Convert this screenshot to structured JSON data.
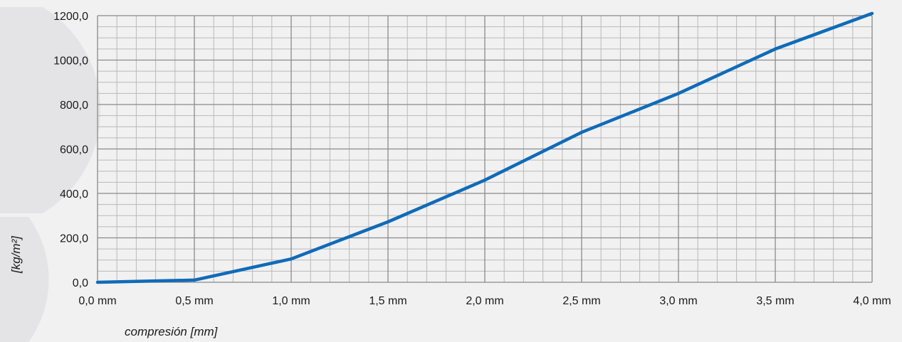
{
  "chart_data": {
    "type": "line",
    "title": "",
    "xlabel": "compresión [mm]",
    "ylabel": "[kg/m²]",
    "x": [
      0.0,
      0.5,
      1.0,
      1.5,
      2.0,
      2.5,
      3.0,
      3.5,
      4.0
    ],
    "series": [
      {
        "values": [
          0,
          10,
          105,
          272,
          460,
          675,
          850,
          1050,
          1210
        ]
      }
    ],
    "xlim": [
      0,
      4
    ],
    "ylim": [
      0,
      1200
    ],
    "x_major_ticks": [
      0,
      0.5,
      1.0,
      1.5,
      2.0,
      2.5,
      3.0,
      3.5,
      4.0
    ],
    "y_major_ticks": [
      0,
      200,
      400,
      600,
      800,
      1000,
      1200
    ],
    "x_tick_labels": [
      "0,0 mm",
      "0,5 mm",
      "1,0 mm",
      "1,5 mm",
      "2,0 mm",
      "2,5 mm",
      "3,0 mm",
      "3,5 mm",
      "4,0 mm"
    ],
    "y_tick_labels": [
      "0,0",
      "200,0",
      "400,0",
      "600,0",
      "800,0",
      "1000,0",
      "1200,0"
    ],
    "minor_grid_per_major_x": 5,
    "minor_grid_per_major_y": 4,
    "grid": true,
    "legend": "none",
    "colors": {
      "line": "#0f6bb8",
      "major_grid": "#8a8a8a",
      "minor_grid": "#b9b9b9",
      "background": "#f1f1f2",
      "watermark": "#e4e4e6"
    }
  }
}
